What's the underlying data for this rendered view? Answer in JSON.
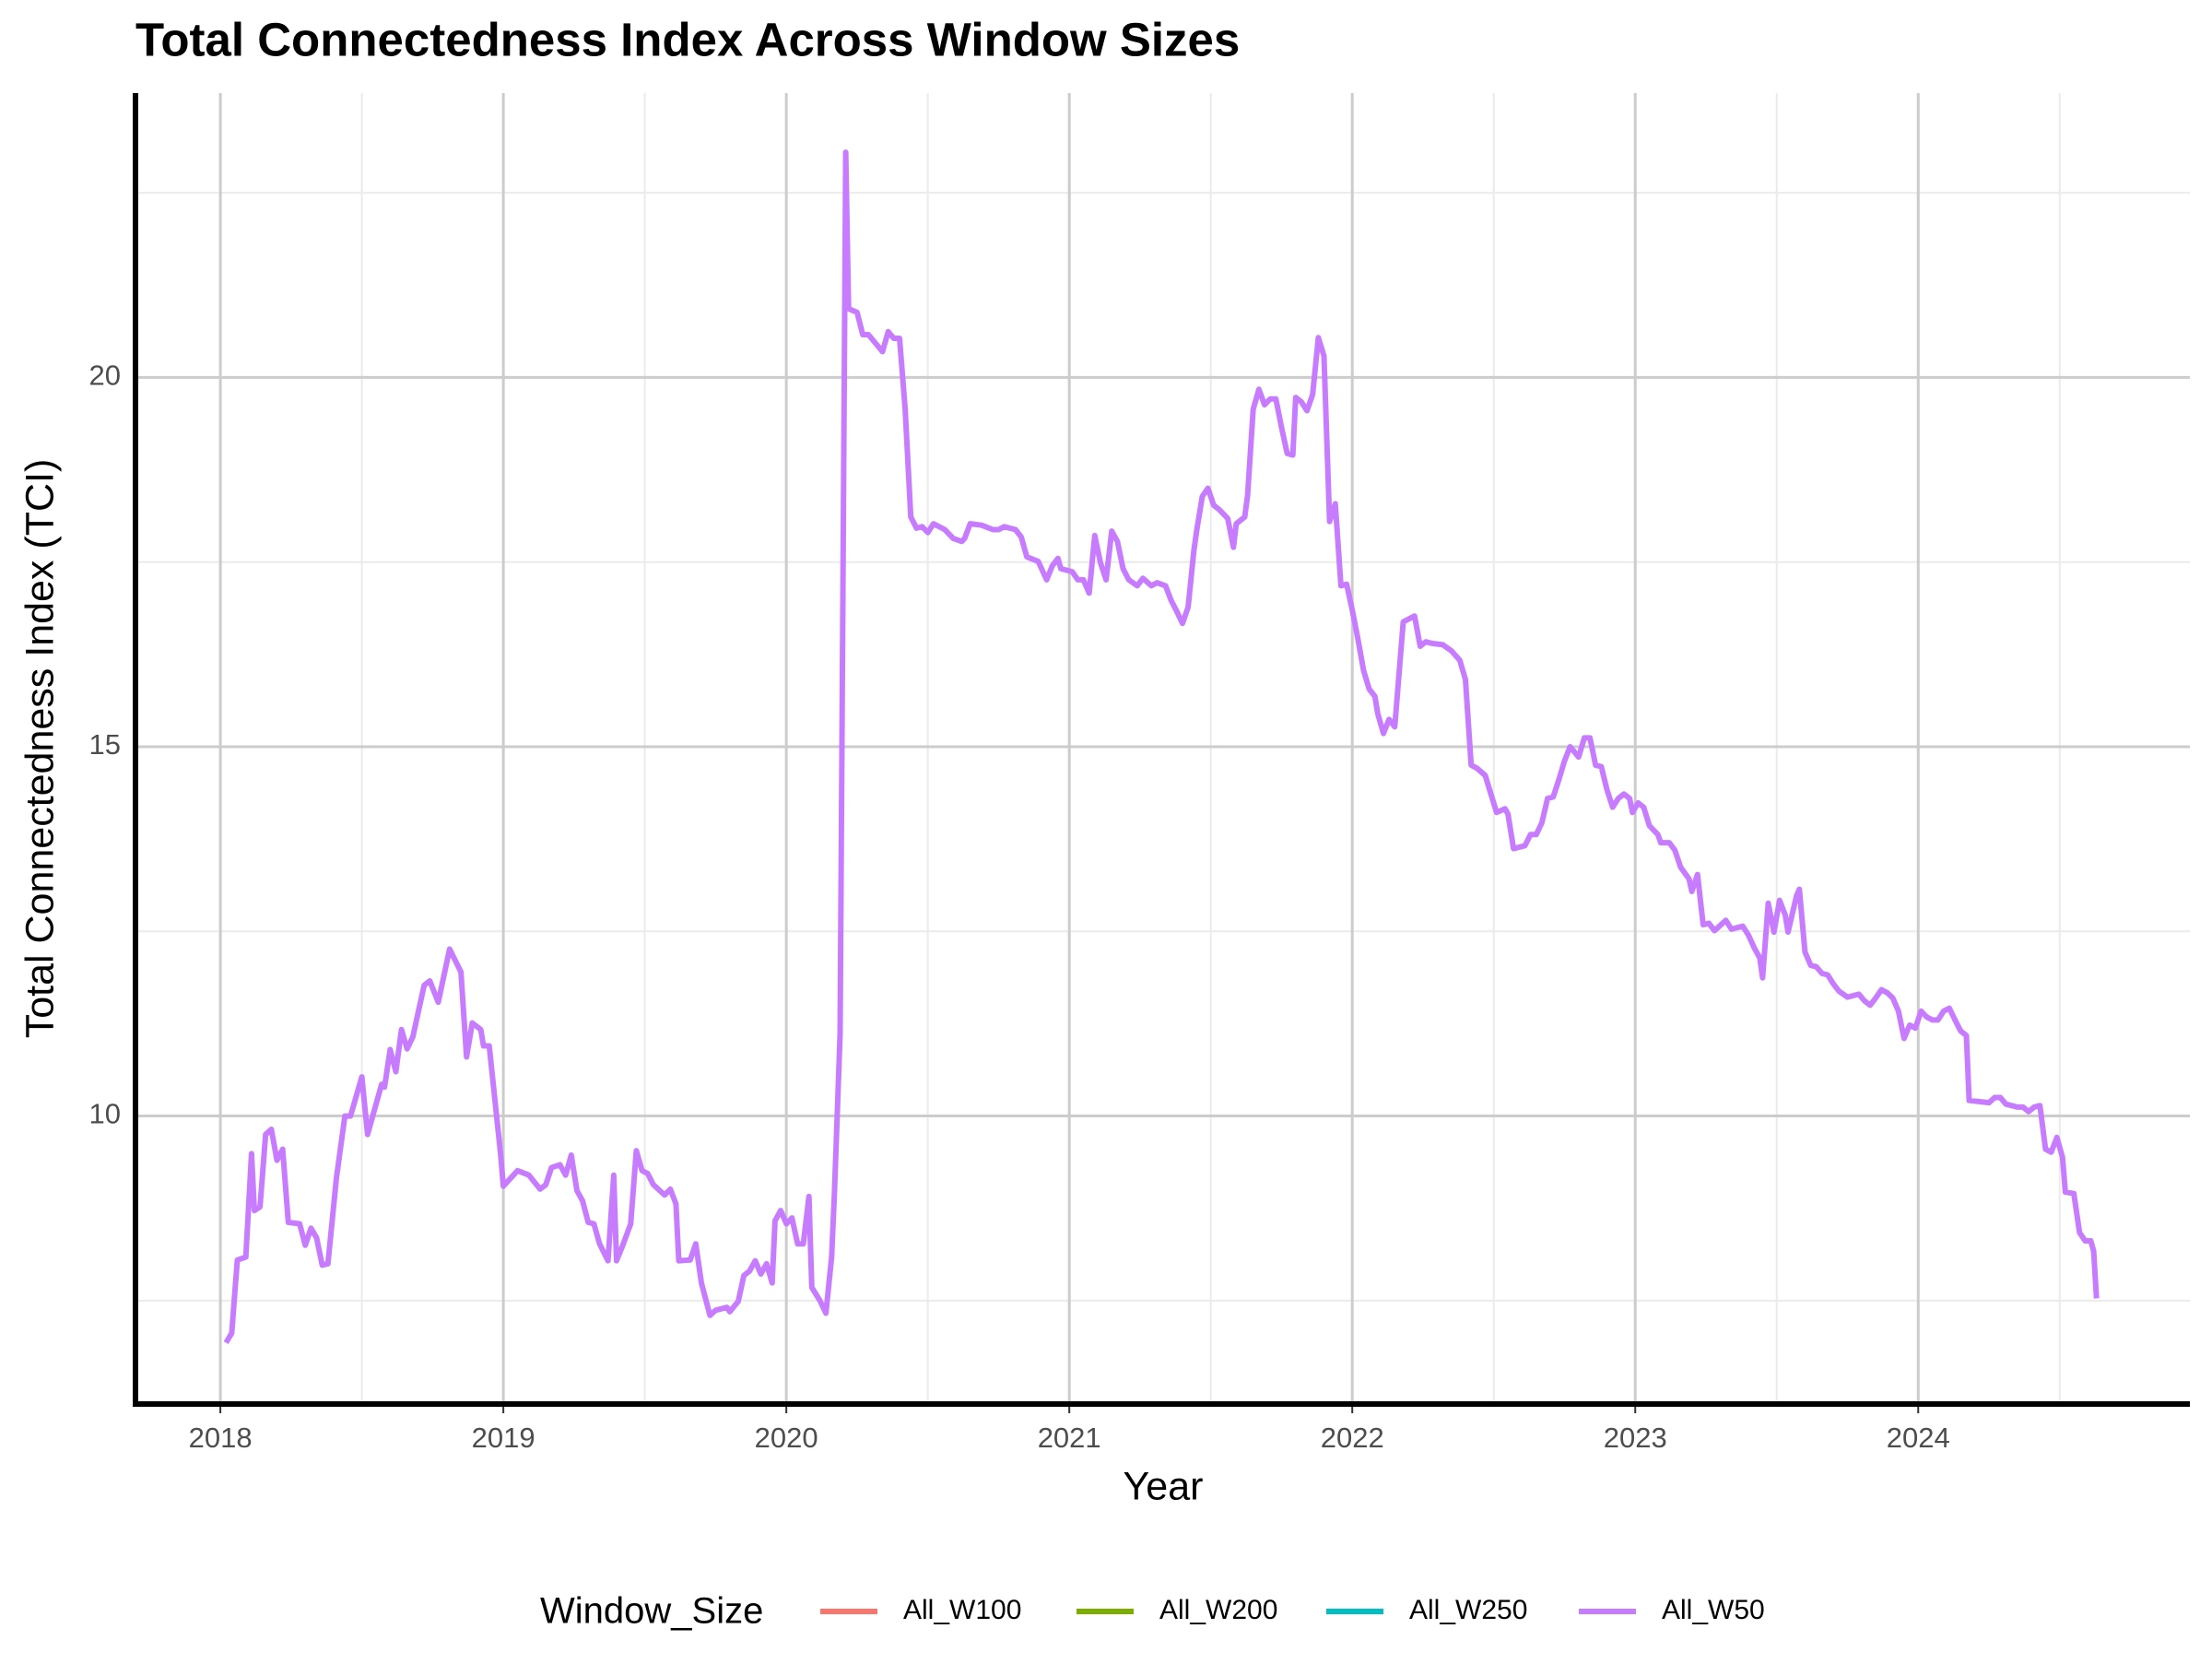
{
  "chart_data": {
    "type": "line",
    "title": "Total Connectedness Index Across Window Sizes",
    "x_label": "Year",
    "y_label": "Total Connectedness Index (TCI)",
    "legend_title": "Window_Size",
    "legend_position": "bottom",
    "grid": true,
    "xlim": [
      2017.7,
      2024.96
    ],
    "xticks": [
      2018,
      2019,
      2020,
      2021,
      2022,
      2023,
      2024
    ],
    "ylim": [
      6.1,
      23.85
    ],
    "yticks": [
      10,
      15,
      20
    ],
    "series": [
      {
        "name": "All_W100",
        "color": "#f8766d",
        "x": [],
        "values": []
      },
      {
        "name": "All_W200",
        "color": "#7cae00",
        "x": [],
        "values": []
      },
      {
        "name": "All_W250",
        "color": "#00bfc4",
        "x": [],
        "values": []
      },
      {
        "name": "All_W50",
        "color": "#c77cff",
        "x": [
          2018.02,
          2018.04,
          2018.06,
          2018.09,
          2018.11,
          2018.12,
          2018.14,
          2018.16,
          2018.18,
          2018.2,
          2018.22,
          2018.24,
          2018.28,
          2018.3,
          2018.32,
          2018.34,
          2018.36,
          2018.38,
          2018.41,
          2018.44,
          2018.46,
          2018.5,
          2018.52,
          2018.57,
          2018.58,
          2018.6,
          2018.62,
          2018.64,
          2018.66,
          2018.68,
          2018.72,
          2018.74,
          2018.77,
          2018.81,
          2018.85,
          2018.87,
          2018.89,
          2018.92,
          2018.93,
          2018.95,
          2018.99,
          2019.0,
          2019.05,
          2019.09,
          2019.13,
          2019.15,
          2019.17,
          2019.2,
          2019.22,
          2019.24,
          2019.26,
          2019.28,
          2019.3,
          2019.32,
          2019.34,
          2019.37,
          2019.39,
          2019.4,
          2019.42,
          2019.45,
          2019.47,
          2019.49,
          2019.51,
          2019.53,
          2019.57,
          2019.59,
          2019.61,
          2019.62,
          2019.66,
          2019.68,
          2019.7,
          2019.73,
          2019.75,
          2019.79,
          2019.8,
          2019.83,
          2019.85,
          2019.87,
          2019.89,
          2019.91,
          2019.93,
          2019.95,
          2019.96,
          2019.98,
          2020.0,
          2020.02,
          2020.04,
          2020.06,
          2020.08,
          2020.09,
          2020.12,
          2020.14,
          2020.16,
          2020.17,
          2020.19,
          2020.21,
          2020.22,
          2020.25,
          2020.27,
          2020.29,
          2020.34,
          2020.36,
          2020.38,
          2020.4,
          2020.42,
          2020.44,
          2020.46,
          2020.48,
          2020.5,
          2020.52,
          2020.56,
          2020.59,
          2020.62,
          2020.63,
          2020.65,
          2020.69,
          2020.73,
          2020.75,
          2020.77,
          2020.81,
          2020.83,
          2020.85,
          2020.89,
          2020.92,
          2020.94,
          2020.96,
          2020.97,
          2021.01,
          2021.03,
          2021.05,
          2021.07,
          2021.09,
          2021.11,
          2021.13,
          2021.15,
          2021.17,
          2021.19,
          2021.21,
          2021.24,
          2021.26,
          2021.29,
          2021.31,
          2021.34,
          2021.36,
          2021.38,
          2021.4,
          2021.42,
          2021.44,
          2021.45,
          2021.47,
          2021.49,
          2021.51,
          2021.53,
          2021.56,
          2021.58,
          2021.59,
          2021.62,
          2021.63,
          2021.65,
          2021.67,
          2021.69,
          2021.71,
          2021.73,
          2021.75,
          2021.77,
          2021.79,
          2021.8,
          2021.82,
          2021.84,
          2021.86,
          2021.88,
          2021.9,
          2021.92,
          2021.94,
          2021.96,
          2021.98,
          2022.0,
          2022.02,
          2022.04,
          2022.06,
          2022.08,
          2022.09,
          2022.11,
          2022.13,
          2022.15,
          2022.18,
          2022.2,
          2022.22,
          2022.24,
          2022.26,
          2022.28,
          2022.32,
          2022.35,
          2022.38,
          2022.4,
          2022.42,
          2022.44,
          2022.47,
          2022.49,
          2022.51,
          2022.54,
          2022.55,
          2022.57,
          2022.61,
          2022.63,
          2022.65,
          2022.67,
          2022.69,
          2022.71,
          2022.73,
          2022.75,
          2022.77,
          2022.8,
          2022.82,
          2022.84,
          2022.86,
          2022.88,
          2022.9,
          2022.92,
          2022.94,
          2022.96,
          2022.98,
          2022.99,
          2023.01,
          2023.03,
          2023.05,
          2023.08,
          2023.09,
          2023.12,
          2023.14,
          2023.16,
          2023.19,
          2023.2,
          2023.22,
          2023.24,
          2023.26,
          2023.28,
          2023.32,
          2023.34,
          2023.38,
          2023.4,
          2023.42,
          2023.44,
          2023.45,
          2023.47,
          2023.49,
          2023.51,
          2023.53,
          2023.54,
          2023.57,
          2023.58,
          2023.6,
          2023.62,
          2023.64,
          2023.66,
          2023.68,
          2023.7,
          2023.72,
          2023.75,
          2023.79,
          2023.81,
          2023.83,
          2023.85,
          2023.87,
          2023.89,
          2023.91,
          2023.93,
          2023.95,
          2023.97,
          2023.99,
          2024.01,
          2024.03,
          2024.05,
          2024.07,
          2024.09,
          2024.11,
          2024.13,
          2024.15,
          2024.17,
          2024.18,
          2024.25,
          2024.27,
          2024.29,
          2024.31,
          2024.35,
          2024.37,
          2024.39,
          2024.41,
          2024.43,
          2024.45,
          2024.47,
          2024.49,
          2024.51,
          2024.52,
          2024.55,
          2024.57,
          2024.59,
          2024.61,
          2024.62,
          2024.63
        ],
        "values": [
          6.93,
          7.06,
          8.05,
          8.09,
          9.49,
          8.72,
          8.77,
          9.75,
          9.82,
          9.4,
          9.55,
          8.56,
          8.54,
          8.25,
          8.48,
          8.35,
          7.98,
          8.0,
          9.16,
          10.0,
          10.0,
          10.53,
          9.75,
          10.43,
          10.39,
          10.9,
          10.6,
          11.17,
          10.91,
          11.07,
          11.77,
          11.83,
          11.54,
          12.26,
          11.95,
          10.8,
          11.26,
          11.17,
          10.95,
          10.95,
          9.49,
          9.05,
          9.26,
          9.2,
          9.01,
          9.07,
          9.3,
          9.34,
          9.2,
          9.47,
          8.99,
          8.85,
          8.56,
          8.54,
          8.27,
          8.04,
          9.2,
          8.04,
          8.23,
          8.54,
          9.53,
          9.26,
          9.22,
          9.07,
          8.93,
          9.01,
          8.81,
          8.04,
          8.05,
          8.27,
          7.74,
          7.3,
          7.37,
          7.41,
          7.35,
          7.49,
          7.84,
          7.9,
          8.04,
          7.86,
          8.0,
          7.74,
          8.58,
          8.72,
          8.54,
          8.62,
          8.27,
          8.27,
          8.91,
          7.68,
          7.49,
          7.33,
          8.09,
          8.97,
          11.11,
          23.05,
          20.93,
          20.88,
          20.58,
          20.58,
          20.35,
          20.62,
          20.53,
          20.53,
          19.57,
          18.11,
          17.96,
          17.98,
          17.9,
          18.02,
          17.94,
          17.82,
          17.78,
          17.82,
          18.02,
          18.0,
          17.94,
          17.94,
          17.98,
          17.94,
          17.84,
          17.57,
          17.51,
          17.26,
          17.45,
          17.55,
          17.41,
          17.37,
          17.26,
          17.26,
          17.08,
          17.86,
          17.49,
          17.26,
          17.92,
          17.78,
          17.41,
          17.26,
          17.18,
          17.28,
          17.18,
          17.22,
          17.18,
          16.98,
          16.83,
          16.67,
          16.89,
          17.65,
          17.92,
          18.39,
          18.5,
          18.27,
          18.21,
          18.09,
          17.7,
          18.02,
          18.11,
          18.4,
          19.57,
          19.84,
          19.63,
          19.71,
          19.71,
          19.32,
          18.97,
          18.95,
          19.73,
          19.67,
          19.55,
          19.77,
          20.54,
          20.29,
          18.05,
          18.29,
          17.18,
          17.2,
          16.85,
          16.46,
          16.03,
          15.78,
          15.68,
          15.45,
          15.18,
          15.37,
          15.27,
          16.69,
          16.73,
          16.77,
          16.36,
          16.42,
          16.4,
          16.38,
          16.3,
          16.17,
          15.91,
          14.75,
          14.71,
          14.61,
          14.36,
          14.11,
          14.16,
          14.09,
          13.62,
          13.66,
          13.81,
          13.81,
          13.97,
          14.3,
          14.32,
          14.55,
          14.81,
          15.0,
          14.86,
          15.12,
          15.12,
          14.75,
          14.73,
          14.42,
          14.18,
          14.3,
          14.36,
          14.3,
          14.11,
          14.24,
          14.18,
          13.93,
          13.81,
          13.7,
          13.7,
          13.6,
          13.37,
          13.21,
          13.04,
          13.27,
          12.59,
          12.61,
          12.51,
          12.65,
          12.53,
          12.57,
          12.45,
          12.28,
          12.14,
          11.87,
          12.88,
          12.49,
          12.92,
          12.72,
          12.49,
          12.98,
          13.07,
          12.22,
          12.04,
          12.02,
          11.93,
          11.91,
          11.79,
          11.69,
          11.61,
          11.65,
          11.56,
          11.5,
          11.6,
          11.71,
          11.67,
          11.6,
          11.42,
          11.05,
          11.23,
          11.19,
          11.42,
          11.34,
          11.3,
          11.3,
          11.42,
          11.46,
          11.3,
          11.15,
          11.09,
          10.21,
          10.18,
          10.25,
          10.25,
          10.16,
          10.12,
          10.12,
          10.06,
          10.12,
          10.14,
          9.55,
          9.51,
          9.71,
          9.44,
          8.97,
          8.95,
          8.42,
          8.31,
          8.31,
          8.17,
          7.53
        ]
      }
    ]
  }
}
